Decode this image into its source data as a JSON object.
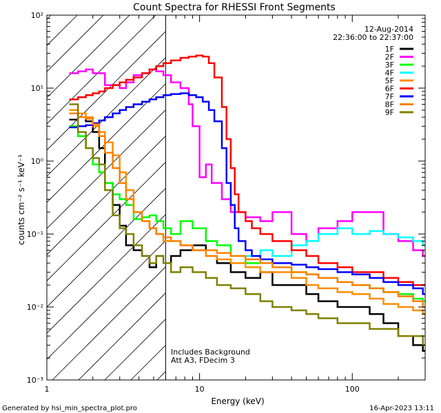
{
  "footer": {
    "generated_by": "Generated by hsi_min_spectra_plot.pro",
    "timestamp": "16-Apr-2023 13:11"
  },
  "annotations": {
    "date": "12-Aug-2014",
    "time_range": "22:36:00 to 22:37:00",
    "note1": "Includes Background",
    "note2": "Att A3, FDecim 3"
  },
  "chart_data": {
    "type": "line",
    "title": "Count Spectra for RHESSI Front Segments",
    "xlabel": "Energy (keV)",
    "ylabel": "counts cm⁻² s⁻¹ keV⁻¹",
    "x_scale": "log",
    "y_scale": "log",
    "xlim": [
      1,
      300
    ],
    "ylim": [
      0.001,
      100
    ],
    "x_ticks": [
      {
        "value": 1,
        "label": "1"
      },
      {
        "value": 10,
        "label": "10"
      },
      {
        "value": 100,
        "label": "100"
      }
    ],
    "y_ticks": [
      {
        "value": 0.001,
        "label": "10⁻³"
      },
      {
        "value": 0.01,
        "label": "10⁻²"
      },
      {
        "value": 0.1,
        "label": "10⁻¹"
      },
      {
        "value": 1,
        "label": "10⁰"
      },
      {
        "value": 10,
        "label": "10¹"
      },
      {
        "value": 100,
        "label": "10²"
      }
    ],
    "shaded_region": {
      "x_max": 6,
      "style": "diagonal hatch"
    },
    "legend_position": "top-right",
    "series": [
      {
        "name": "1F",
        "color": "#000000",
        "x": [
          1.4,
          1.6,
          1.8,
          2.0,
          2.2,
          2.4,
          2.7,
          3.0,
          3.3,
          3.7,
          4.2,
          4.7,
          5.2,
          5.8,
          6.5,
          7.5,
          9,
          11,
          13,
          16,
          20,
          25,
          30,
          40,
          50,
          60,
          80,
          100,
          130,
          160,
          200,
          250,
          290
        ],
        "y": [
          3.7,
          4.0,
          3.5,
          2.5,
          1.5,
          0.5,
          0.25,
          0.13,
          0.07,
          0.06,
          0.05,
          0.035,
          0.05,
          0.04,
          0.05,
          0.06,
          0.07,
          0.05,
          0.04,
          0.03,
          0.025,
          0.03,
          0.02,
          0.02,
          0.015,
          0.012,
          0.01,
          0.01,
          0.008,
          0.006,
          0.004,
          0.003,
          0.0025
        ]
      },
      {
        "name": "2F",
        "color": "#ff00ff",
        "x": [
          1.4,
          1.6,
          1.8,
          2.0,
          2.2,
          2.4,
          2.7,
          3.0,
          3.3,
          3.7,
          4.2,
          4.7,
          5.2,
          5.8,
          6.5,
          7.5,
          8.5,
          9,
          10,
          11,
          12,
          14,
          16,
          20,
          25,
          30,
          40,
          50,
          60,
          80,
          100,
          130,
          160,
          200,
          250,
          290
        ],
        "y": [
          16,
          17,
          18,
          16,
          16,
          11,
          11,
          10,
          12,
          15,
          16,
          18,
          17,
          15,
          12,
          10,
          6,
          3,
          0.6,
          0.9,
          0.5,
          0.3,
          0.2,
          0.17,
          0.15,
          0.2,
          0.1,
          0.08,
          0.12,
          0.15,
          0.2,
          0.2,
          0.1,
          0.08,
          0.06,
          0.05
        ]
      },
      {
        "name": "3F",
        "color": "#00ff00",
        "x": [
          1.4,
          1.6,
          1.8,
          2.0,
          2.2,
          2.4,
          2.7,
          3.0,
          3.3,
          3.7,
          4.2,
          4.7,
          5.2,
          5.8,
          6.5,
          7.5,
          9,
          11,
          13,
          16,
          20,
          25,
          30,
          40,
          50,
          60,
          80,
          100,
          130,
          160,
          200,
          250,
          290
        ],
        "y": [
          3.0,
          2.2,
          1.5,
          0.9,
          0.7,
          0.5,
          0.35,
          0.3,
          0.25,
          0.16,
          0.17,
          0.18,
          0.15,
          0.12,
          0.1,
          0.15,
          0.12,
          0.08,
          0.07,
          0.05,
          0.04,
          0.04,
          0.035,
          0.03,
          0.028,
          0.025,
          0.022,
          0.02,
          0.018,
          0.016,
          0.015,
          0.013,
          0.012
        ]
      },
      {
        "name": "4F",
        "color": "#00ffff",
        "x": [
          20,
          25,
          30,
          40,
          50,
          60,
          80,
          100,
          130,
          160,
          200,
          250,
          290
        ],
        "y": [
          0.05,
          0.06,
          0.05,
          0.07,
          0.08,
          0.1,
          0.12,
          0.1,
          0.11,
          0.1,
          0.09,
          0.08,
          0.07
        ]
      },
      {
        "name": "5F",
        "color": "#ff8c00",
        "x": [
          1.4,
          1.6,
          1.8,
          2.0,
          2.2,
          2.4,
          2.7,
          3.0,
          3.3,
          3.7,
          4.2,
          4.7,
          5.2,
          5.8,
          6.5,
          7.5,
          9,
          11,
          13,
          16,
          20,
          25,
          30,
          40,
          50,
          60,
          80,
          100,
          130,
          160,
          200,
          250,
          290
        ],
        "y": [
          5.0,
          4.5,
          4.0,
          3.0,
          2.5,
          1.8,
          1.2,
          0.7,
          0.4,
          0.2,
          0.15,
          0.12,
          0.1,
          0.08,
          0.08,
          0.07,
          0.06,
          0.05,
          0.045,
          0.04,
          0.035,
          0.03,
          0.03,
          0.025,
          0.02,
          0.018,
          0.016,
          0.015,
          0.013,
          0.011,
          0.01,
          0.009,
          0.008
        ]
      },
      {
        "name": "6F",
        "color": "#ff0000",
        "x": [
          1.4,
          1.6,
          1.8,
          2.0,
          2.2,
          2.4,
          2.7,
          3.0,
          3.3,
          3.7,
          4.2,
          4.7,
          5.2,
          5.8,
          6.5,
          7.5,
          8.5,
          9.5,
          10.5,
          11.5,
          12.5,
          14,
          15,
          16,
          17,
          18,
          20,
          22,
          25,
          30,
          40,
          50,
          60,
          80,
          100,
          130,
          160,
          200,
          250,
          290
        ],
        "y": [
          7,
          7.5,
          8,
          8.5,
          9,
          10,
          11,
          12,
          13,
          14,
          16,
          18,
          20,
          22,
          24,
          26,
          27,
          28,
          27,
          22,
          14,
          5.5,
          2.0,
          0.8,
          0.35,
          0.2,
          0.15,
          0.12,
          0.1,
          0.08,
          0.06,
          0.05,
          0.04,
          0.035,
          0.03,
          0.03,
          0.025,
          0.022,
          0.02,
          0.02
        ]
      },
      {
        "name": "7F",
        "color": "#0000ff",
        "x": [
          1.4,
          1.6,
          1.8,
          2.0,
          2.2,
          2.4,
          2.7,
          3.0,
          3.3,
          3.7,
          4.2,
          4.7,
          5.2,
          5.8,
          6.5,
          7.5,
          8.5,
          9.5,
          10.5,
          11.5,
          12.5,
          14,
          15,
          16,
          17,
          18,
          20,
          22,
          25,
          30,
          40,
          50,
          60,
          80,
          100,
          130,
          160,
          200,
          250,
          290
        ],
        "y": [
          2.9,
          3.0,
          3.1,
          3.3,
          3.6,
          4.0,
          4.5,
          5.0,
          5.5,
          6.0,
          6.5,
          7.0,
          7.5,
          8.0,
          8.3,
          8.5,
          8.0,
          7.5,
          6.5,
          5.0,
          3.5,
          1.5,
          0.5,
          0.25,
          0.12,
          0.08,
          0.06,
          0.05,
          0.045,
          0.04,
          0.038,
          0.035,
          0.033,
          0.03,
          0.028,
          0.025,
          0.022,
          0.02,
          0.018,
          0.015
        ]
      },
      {
        "name": "8F",
        "color": "#ff7f00",
        "x": [
          1.4,
          1.6,
          1.8,
          2.0,
          2.2,
          2.4,
          2.7,
          3.0,
          3.3,
          3.7,
          4.2,
          4.7,
          5.2,
          5.8,
          6.5,
          7.5,
          9,
          11,
          13,
          16,
          20,
          25,
          30,
          40,
          50,
          60,
          80,
          100,
          130,
          160,
          200,
          250,
          290
        ],
        "y": [
          4.5,
          4.0,
          3.8,
          3.2,
          2.2,
          1.3,
          0.8,
          0.5,
          0.3,
          0.2,
          0.15,
          0.12,
          0.1,
          0.09,
          0.08,
          0.07,
          0.06,
          0.06,
          0.055,
          0.05,
          0.045,
          0.04,
          0.035,
          0.03,
          0.028,
          0.025,
          0.022,
          0.02,
          0.018,
          0.016,
          0.014,
          0.012,
          0.01
        ]
      },
      {
        "name": "9F",
        "color": "#808000",
        "x": [
          1.4,
          1.6,
          1.8,
          2.0,
          2.2,
          2.4,
          2.7,
          3.0,
          3.3,
          3.7,
          4.2,
          4.7,
          5.2,
          5.8,
          6.5,
          7.5,
          9,
          11,
          13,
          16,
          20,
          25,
          30,
          40,
          50,
          60,
          80,
          100,
          130,
          160,
          200,
          250,
          290
        ],
        "y": [
          6.0,
          2.5,
          1.5,
          1.1,
          0.9,
          0.4,
          0.18,
          0.12,
          0.1,
          0.07,
          0.05,
          0.04,
          0.05,
          0.04,
          0.03,
          0.035,
          0.03,
          0.025,
          0.02,
          0.018,
          0.015,
          0.012,
          0.01,
          0.009,
          0.008,
          0.007,
          0.006,
          0.006,
          0.005,
          0.005,
          0.004,
          0.004,
          0.003
        ]
      }
    ]
  }
}
